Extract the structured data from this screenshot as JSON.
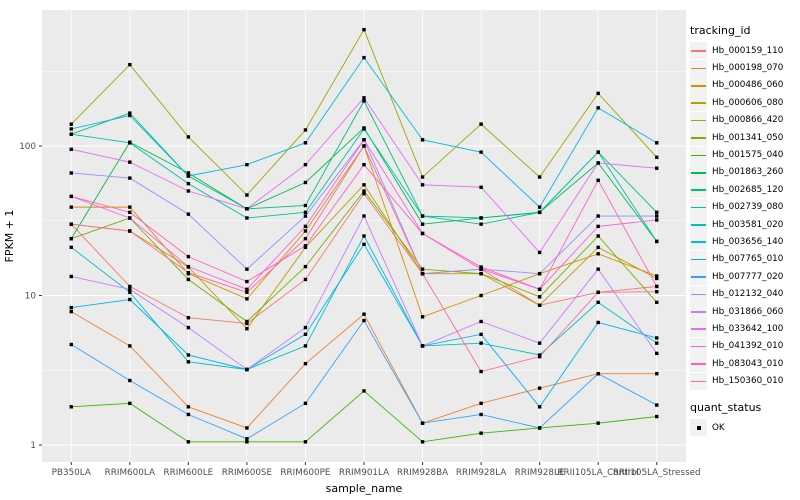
{
  "legend": {
    "tracking_id_title": "tracking_id",
    "quant_status_title": "quant_status",
    "quant_status_items": [
      "OK"
    ]
  },
  "chart_data": {
    "type": "line",
    "title": "",
    "xlabel": "sample_name",
    "ylabel": "FPKM + 1",
    "y_scale": "log10",
    "y_ticks": [
      1,
      10,
      100
    ],
    "y_tick_labels": [
      "1",
      "10",
      "100"
    ],
    "ylim": [
      1,
      700
    ],
    "grid": true,
    "legend_position": "right",
    "panel_background": "#EBEBEB",
    "gridline_color": "#FFFFFF",
    "point_shape": "square",
    "point_color": "#000000",
    "categories": [
      "PB350LA",
      "RRIM600LA",
      "RRIM600LE",
      "RRIM600SE",
      "RRIM600PE",
      "RRIM901LA",
      "RRIM928BA",
      "RRIM928LA",
      "RRIM928LE",
      "RRII105LA_Control",
      "RRII105LA_Stressed"
    ],
    "series": [
      {
        "name": "Hb_000159_110",
        "color": "#F8766D",
        "values": [
          30,
          11.5,
          7.1,
          6.5,
          12.8,
          48,
          14,
          15,
          8.6,
          10.5,
          11.5
        ]
      },
      {
        "name": "Hb_000198_070",
        "color": "#EA8331",
        "values": [
          7.8,
          4.6,
          1.8,
          1.3,
          3.5,
          7.5,
          1.4,
          1.9,
          2.4,
          3.0,
          3.0
        ]
      },
      {
        "name": "Hb_000486_060",
        "color": "#D89000",
        "values": [
          39,
          39,
          14,
          9.5,
          27,
          100,
          7.2,
          10,
          14,
          19,
          13.5
        ]
      },
      {
        "name": "Hb_000606_080",
        "color": "#C09B00",
        "values": [
          30,
          27,
          15.5,
          6.0,
          21,
          55,
          14,
          14,
          8.6,
          21,
          13
        ]
      },
      {
        "name": "Hb_000866_420",
        "color": "#A3A500",
        "values": [
          140,
          350,
          115,
          47,
          128,
          600,
          62,
          140,
          62,
          225,
          84
        ]
      },
      {
        "name": "Hb_001341_050",
        "color": "#7CAE00",
        "values": [
          24,
          33,
          12.8,
          6.7,
          15.6,
          50,
          15,
          14,
          9.8,
          25,
          9
        ]
      },
      {
        "name": "Hb_001575_040",
        "color": "#39B600",
        "values": [
          1.8,
          1.9,
          1.05,
          1.05,
          1.05,
          2.3,
          1.05,
          1.2,
          1.3,
          1.4,
          1.55
        ]
      },
      {
        "name": "Hb_001863_260",
        "color": "#00BB4E",
        "values": [
          24,
          106,
          66,
          38,
          57,
          132,
          30,
          33,
          36,
          77,
          23
        ]
      },
      {
        "name": "Hb_002685_120",
        "color": "#00BF7D",
        "values": [
          120,
          166,
          63,
          38,
          40,
          200,
          34,
          33,
          36,
          91,
          36
        ]
      },
      {
        "name": "Hb_002739_080",
        "color": "#00C1A3",
        "values": [
          120,
          105,
          56,
          33,
          36,
          130,
          34,
          30,
          36,
          91,
          23
        ]
      },
      {
        "name": "Hb_003581_020",
        "color": "#00BFC4",
        "values": [
          21,
          10.5,
          3.6,
          3.2,
          4.6,
          25,
          4.6,
          4.8,
          4.0,
          9.0,
          4.8
        ]
      },
      {
        "name": "Hb_003656_140",
        "color": "#00BAE0",
        "values": [
          130,
          160,
          63,
          75,
          105,
          390,
          110,
          91,
          39,
          180,
          105
        ]
      },
      {
        "name": "Hb_007765_010",
        "color": "#00B0F6",
        "values": [
          8.3,
          9.4,
          4.0,
          3.2,
          5.5,
          22,
          4.6,
          5.5,
          1.8,
          6.6,
          5.2
        ]
      },
      {
        "name": "Hb_007777_020",
        "color": "#35A2FF",
        "values": [
          4.7,
          2.7,
          1.6,
          1.1,
          1.9,
          6.8,
          1.4,
          1.6,
          1.3,
          3.0,
          1.85
        ]
      },
      {
        "name": "Hb_012132_040",
        "color": "#9590FF",
        "values": [
          66,
          61,
          35,
          15,
          34,
          110,
          14,
          15,
          14,
          34,
          34
        ]
      },
      {
        "name": "Hb_031866_060",
        "color": "#C77CFF",
        "values": [
          13.4,
          11,
          6.1,
          3.2,
          6.1,
          34,
          4.6,
          6.7,
          4.8,
          15,
          4.1
        ]
      },
      {
        "name": "Hb_033642_100",
        "color": "#E76BF3",
        "values": [
          95,
          78,
          50,
          38,
          75,
          210,
          55,
          53,
          19.4,
          77,
          71
        ]
      },
      {
        "name": "Hb_041392_010",
        "color": "#FA62DB",
        "values": [
          46,
          33,
          15.6,
          11.0,
          29,
          110,
          26,
          15,
          11,
          29,
          32
        ]
      },
      {
        "name": "Hb_083043_010",
        "color": "#FF62BC",
        "values": [
          46,
          36,
          18.2,
          12.4,
          21.5,
          75,
          26,
          15.5,
          11,
          59,
          11.5
        ]
      },
      {
        "name": "Hb_150360_010",
        "color": "#FF6A98",
        "values": [
          30,
          27,
          14.2,
          10.5,
          24,
          100,
          14,
          3.1,
          3.9,
          10.5,
          10.6
        ]
      }
    ]
  }
}
